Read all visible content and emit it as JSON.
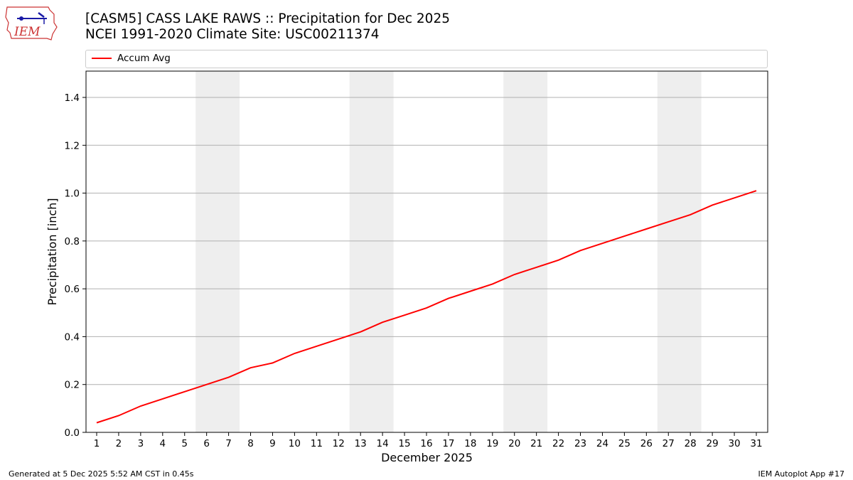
{
  "header": {
    "title_line1": "[CASM5] CASS LAKE RAWS :: Precipitation for Dec 2025",
    "title_line2": "NCEI 1991-2020 Climate Site: USC00211374",
    "logo_text": "IEM"
  },
  "footer": {
    "generated": "Generated at 5 Dec 2025 5:52 AM CST in 0.45s",
    "app": "IEM Autoplot App #17"
  },
  "chart_data": {
    "type": "line",
    "xlabel": "December 2025",
    "ylabel": "Precipitation [inch]",
    "ylim": [
      0,
      1.51
    ],
    "yticks": [
      "0.0",
      "0.2",
      "0.4",
      "0.6",
      "0.8",
      "1.0",
      "1.2",
      "1.4"
    ],
    "categories": [
      "1",
      "2",
      "3",
      "4",
      "5",
      "6",
      "7",
      "8",
      "9",
      "10",
      "11",
      "12",
      "13",
      "14",
      "15",
      "16",
      "17",
      "18",
      "19",
      "20",
      "21",
      "22",
      "23",
      "24",
      "25",
      "26",
      "27",
      "28",
      "29",
      "30",
      "31"
    ],
    "grid": "horizontal",
    "legend_placement": "top",
    "weekend_shading": [
      [
        6,
        7
      ],
      [
        13,
        14
      ],
      [
        20,
        21
      ],
      [
        27,
        28
      ]
    ],
    "series": [
      {
        "name": "Accum Avg",
        "color": "#ff0000",
        "values": [
          0.04,
          0.07,
          0.11,
          0.14,
          0.17,
          0.2,
          0.23,
          0.27,
          0.29,
          0.33,
          0.36,
          0.39,
          0.42,
          0.46,
          0.49,
          0.52,
          0.56,
          0.59,
          0.62,
          0.66,
          0.69,
          0.72,
          0.76,
          0.79,
          0.82,
          0.85,
          0.88,
          0.91,
          0.95,
          0.98,
          1.01
        ]
      }
    ]
  }
}
